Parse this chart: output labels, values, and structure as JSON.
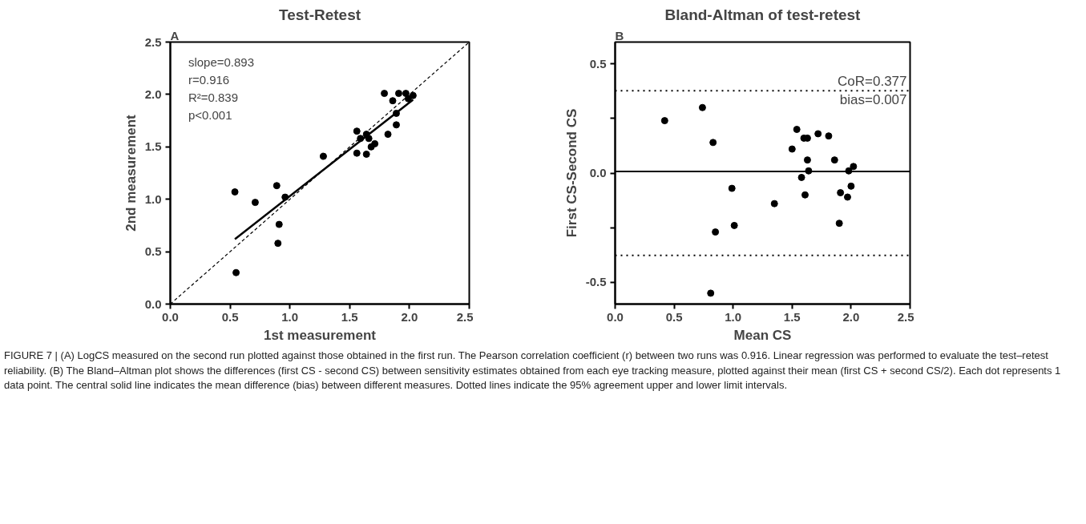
{
  "chart_data": [
    {
      "type": "scatter",
      "title": "Test-Retest",
      "subtitle": "A",
      "xlabel": "1st measurement",
      "ylabel": "2nd measurement",
      "xlim": [
        0,
        2.5
      ],
      "ylim": [
        0,
        2.5
      ],
      "xticks": [
        {
          "value": 0,
          "label": "0.0"
        },
        {
          "value": 0.5,
          "label": "0.5"
        },
        {
          "value": 1,
          "label": "1.0"
        },
        {
          "value": 1.5,
          "label": "1.5"
        },
        {
          "value": 2,
          "label": "2.0"
        },
        {
          "value": 2.5,
          "label": "2.5"
        }
      ],
      "yticks": [
        {
          "value": 0,
          "label": "0.0"
        },
        {
          "value": 0.5,
          "label": "0.5"
        },
        {
          "value": 1,
          "label": "1.0"
        },
        {
          "value": 1.5,
          "label": "1.5"
        },
        {
          "value": 2,
          "label": "2.0"
        },
        {
          "value": 2.5,
          "label": "2.5"
        }
      ],
      "grid": false,
      "marker": "circle",
      "x": [
        0.54,
        0.71,
        0.89,
        0.96,
        0.91,
        0.9,
        0.55,
        1.28,
        1.56,
        1.59,
        1.56,
        1.64,
        1.66,
        1.64,
        1.68,
        1.71,
        1.82,
        1.79,
        1.86,
        1.89,
        1.89,
        1.91,
        1.97,
        1.99,
        2.03
      ],
      "series": [
        {
          "color": "#000000",
          "values": [
            1.07,
            0.97,
            1.13,
            1.02,
            0.76,
            0.58,
            0.3,
            1.41,
            1.65,
            1.58,
            1.44,
            1.62,
            1.58,
            1.43,
            1.5,
            1.53,
            1.62,
            2.01,
            1.94,
            1.82,
            1.71,
            2.01,
            2.01,
            1.96,
            1.99
          ]
        },
        {
          "type": "line",
          "color": "#000000",
          "line_style": "solid",
          "marker": "none",
          "x": [
            0.54,
            2.03
          ],
          "values": [
            0.62,
            1.95
          ]
        },
        {
          "type": "line",
          "color": "#000000",
          "line_style": "dashed",
          "marker": "none",
          "x": [
            0,
            2.5
          ],
          "values": [
            0,
            2.5
          ]
        }
      ],
      "annotations": [
        "slope=0.893",
        "r=0.916",
        "R²=0.839",
        "p<0.001"
      ]
    },
    {
      "type": "scatter",
      "title": "Bland-Altman of test-retest",
      "subtitle": "B",
      "xlabel": "Mean CS",
      "ylabel": "First CS-Second CS",
      "xlim": [
        0,
        2.5
      ],
      "ylim": [
        -0.6,
        0.6
      ],
      "xticks": [
        {
          "value": 0,
          "label": "0.0"
        },
        {
          "value": 0.5,
          "label": "0.5"
        },
        {
          "value": 1,
          "label": "1.0"
        },
        {
          "value": 1.5,
          "label": "1.5"
        },
        {
          "value": 2,
          "label": "2.0"
        },
        {
          "value": 2.5,
          "label": "2.5"
        }
      ],
      "yticks": [
        {
          "value": -0.5,
          "label": "-0.5"
        },
        {
          "value": -0.25,
          "label": null
        },
        {
          "value": 0,
          "label": "0.0"
        },
        {
          "value": 0.25,
          "label": null
        },
        {
          "value": 0.5,
          "label": "0.5"
        }
      ],
      "grid": false,
      "marker": "circle",
      "x": [
        0.42,
        0.74,
        0.83,
        0.99,
        1.01,
        0.85,
        1.35,
        1.54,
        1.5,
        1.6,
        1.63,
        1.72,
        1.81,
        1.63,
        1.86,
        1.64,
        1.58,
        1.61,
        1.98,
        2.02,
        2.0,
        1.91,
        1.97,
        1.9,
        0.81
      ],
      "series": [
        {
          "color": "#000000",
          "values": [
            0.24,
            0.3,
            0.14,
            -0.07,
            -0.24,
            -0.27,
            -0.14,
            0.2,
            0.11,
            0.16,
            0.16,
            0.18,
            0.17,
            0.06,
            0.06,
            0.01,
            -0.02,
            -0.1,
            0.01,
            0.03,
            -0.06,
            -0.09,
            -0.11,
            -0.23,
            -0.55
          ]
        }
      ],
      "ref_lines": [
        {
          "axis": "y",
          "value": 0.377,
          "color": "#000000",
          "line_style": "dotted"
        },
        {
          "axis": "y",
          "value": -0.377,
          "color": "#000000",
          "line_style": "dotted"
        },
        {
          "axis": "y",
          "value": 0.007,
          "color": "#000000",
          "line_style": "solid"
        }
      ],
      "annotations": [
        {
          "text": "CoR=0.377",
          "x": 2.5,
          "y": 0.377
        },
        {
          "text": "bias=0.007",
          "x": 2.5,
          "y": 0.377
        }
      ]
    },
    {
      "type": "other",
      "annotations": [
        "FIGURE 7 | (A) LogCS measured on the second run plotted against those obtained in the first run. The Pearson correlation coefficient (r) between two runs was 0.916. Linear regression was performed to evaluate the test–retest reliability. (B) The Bland–Altman plot shows the differences (first CS - second CS) between sensitivity estimates obtained from each eye tracking measure, plotted against their mean (first CS + second CS/2). Each dot represents 1 data point. The central solid line indicates the mean difference (bias) between different measures. Dotted lines indicate the 95% agreement upper and lower limit intervals."
      ]
    }
  ]
}
